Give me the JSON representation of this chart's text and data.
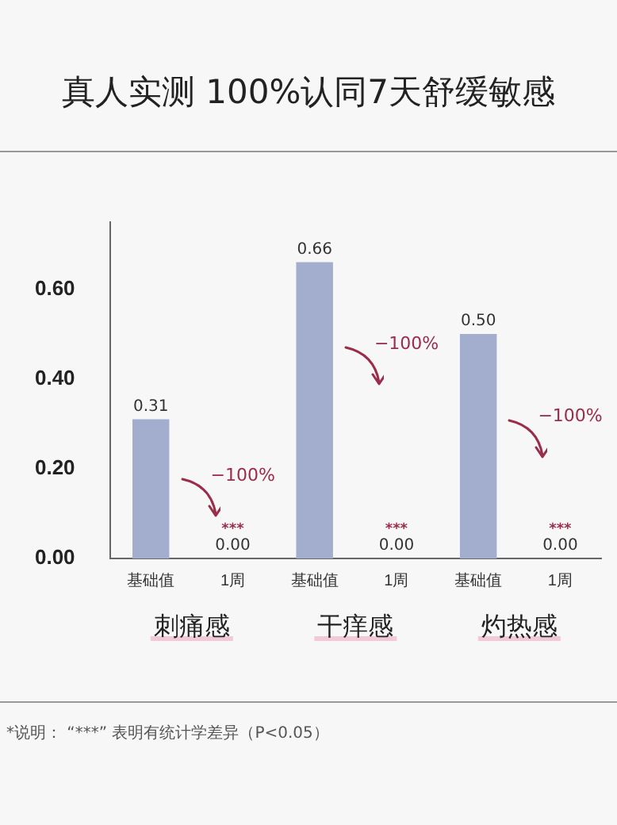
{
  "chart_data": {
    "type": "bar",
    "title": "真人实测 100%认同7天舒缓敏感",
    "categories": [
      "基础值",
      "1周",
      "基础值",
      "1周",
      "基础值",
      "1周"
    ],
    "values": [
      0.31,
      0,
      0.66,
      0,
      0.5,
      0
    ],
    "value_labels": [
      "0.31",
      "0.00",
      "0.66",
      "0.00",
      "0.50",
      "0.00"
    ],
    "color": "#a3aecf",
    "ylim": [
      0,
      0.75
    ],
    "yticks": [
      {
        "value": 0,
        "label": "0.00"
      },
      {
        "value": 0.2,
        "label": "0.20"
      },
      {
        "value": 0.4,
        "label": "0.40"
      },
      {
        "value": 0.6,
        "label": "0.60"
      }
    ],
    "grid": false,
    "legend": false,
    "annotations": [
      "刺痛感",
      "干痒感",
      "灼热感",
      "−100%",
      "−100%",
      "−100%",
      "***",
      "***",
      "***",
      "*说明：  “***” 表明有统计学差异（P<0.05）"
    ]
  }
}
